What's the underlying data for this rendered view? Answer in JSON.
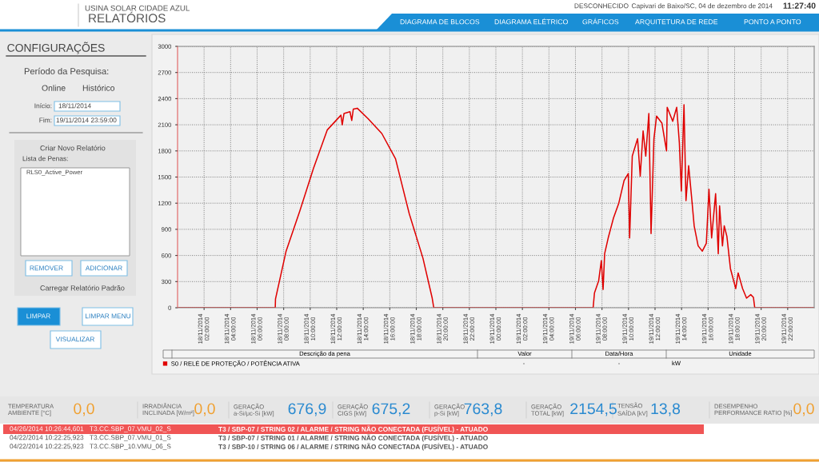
{
  "chart_data": [
    {
      "type": "line",
      "legend": "bottom",
      "grid": true,
      "line_style": "solid",
      "series": [
        {
          "name": "S0 / RELÉ DE PROTEÇÃO / POTÊNCIA ATIVA",
          "color": "#e00000",
          "x": [
            "2014-11-18T00:00",
            "2014-11-18T07:22",
            "2014-11-18T07:23",
            "2014-11-18T08:11",
            "2014-11-18T09:13",
            "2014-11-18T10:15",
            "2014-11-18T11:17",
            "2014-11-18T12:19",
            "2014-11-18T12:25",
            "2014-11-18T12:33",
            "2014-11-18T13:00",
            "2014-11-18T13:08",
            "2014-11-18T13:15",
            "2014-11-18T13:33",
            "2014-11-18T14:22",
            "2014-11-18T15:24",
            "2014-11-18T16:26",
            "2014-11-18T17:28",
            "2014-11-18T18:30",
            "2014-11-18T19:12",
            "2014-11-18T19:19",
            "2014-11-19T00:00",
            "2014-11-19T07:20",
            "2014-11-19T07:26",
            "2014-11-19T07:45",
            "2014-11-19T07:57",
            "2014-11-19T08:05",
            "2014-11-19T08:12",
            "2014-11-19T08:28",
            "2014-11-19T08:52",
            "2014-11-19T09:16",
            "2014-11-19T09:40",
            "2014-11-19T09:59",
            "2014-11-19T10:05",
            "2014-11-19T10:17",
            "2014-11-19T10:41",
            "2014-11-19T10:53",
            "2014-11-19T11:06",
            "2014-11-19T11:18",
            "2014-11-19T11:32",
            "2014-11-19T11:42",
            "2014-11-19T11:55",
            "2014-11-19T12:07",
            "2014-11-19T12:31",
            "2014-11-19T12:52",
            "2014-11-19T12:55",
            "2014-11-19T13:20",
            "2014-11-19T13:38",
            "2014-11-19T13:50",
            "2014-11-19T13:59",
            "2014-11-19T14:11",
            "2014-11-19T14:20",
            "2014-11-19T14:32",
            "2014-11-19T14:45",
            "2014-11-19T14:57",
            "2014-11-19T15:15",
            "2014-11-19T15:34",
            "2014-11-19T15:52",
            "2014-11-19T16:04",
            "2014-11-19T16:16",
            "2014-11-19T16:34",
            "2014-11-19T16:46",
            "2014-11-19T16:52",
            "2014-11-19T17:05",
            "2014-11-19T17:13",
            "2014-11-19T17:25",
            "2014-11-19T17:41",
            "2014-11-19T18:05",
            "2014-11-19T18:16",
            "2014-11-19T18:36",
            "2014-11-19T18:54",
            "2014-11-19T19:13",
            "2014-11-19T19:25",
            "2014-11-19T19:31",
            "2014-11-20T00:00"
          ],
          "values": [
            0,
            0,
            100,
            650,
            1110,
            1600,
            2040,
            2210,
            2100,
            2230,
            2250,
            2150,
            2280,
            2290,
            2170,
            2000,
            1710,
            1080,
            570,
            110,
            0,
            0,
            0,
            170,
            310,
            540,
            210,
            620,
            800,
            1030,
            1200,
            1460,
            1540,
            800,
            1740,
            1940,
            1510,
            2030,
            1740,
            2230,
            850,
            1940,
            2200,
            2120,
            1800,
            2300,
            2140,
            2300,
            1890,
            1340,
            2330,
            1230,
            1630,
            1280,
            940,
            710,
            650,
            740,
            1360,
            800,
            1310,
            620,
            1170,
            710,
            940,
            820,
            450,
            220,
            400,
            220,
            110,
            150,
            120,
            0,
            0
          ]
        }
      ],
      "xlim": [
        "2014-11-18T00:00",
        "2014-11-20T00:00"
      ],
      "xticks": [
        {
          "value": "2014-11-18T02:00",
          "label": "18/11/2014\n02:00:00"
        },
        {
          "value": "2014-11-18T04:00",
          "label": "18/11/2014\n04:00:00"
        },
        {
          "value": "2014-11-18T06:00",
          "label": "18/11/2014\n06:00:00"
        },
        {
          "value": "2014-11-18T08:00",
          "label": "18/11/2014\n08:00:00"
        },
        {
          "value": "2014-11-18T10:00",
          "label": "18/11/2014\n10:00:00"
        },
        {
          "value": "2014-11-18T12:00",
          "label": "18/11/2014\n12:00:00"
        },
        {
          "value": "2014-11-18T14:00",
          "label": "18/11/2014\n14:00:00"
        },
        {
          "value": "2014-11-18T16:00",
          "label": "18/11/2014\n16:00:00"
        },
        {
          "value": "2014-11-18T18:00",
          "label": "18/11/2014\n18:00:00"
        },
        {
          "value": "2014-11-18T20:00",
          "label": "18/11/2014\n20:00:00"
        },
        {
          "value": "2014-11-18T22:00",
          "label": "18/11/2014\n22:00:00"
        },
        {
          "value": "2014-11-19T00:00",
          "label": "19/11/2014\n00:00:00"
        },
        {
          "value": "2014-11-19T02:00",
          "label": "19/11/2014\n02:00:00"
        },
        {
          "value": "2014-11-19T04:00",
          "label": "19/11/2014\n04:00:00"
        },
        {
          "value": "2014-11-19T06:00",
          "label": "19/11/2014\n06:00:00"
        },
        {
          "value": "2014-11-19T08:00",
          "label": "19/11/2014\n08:00:00"
        },
        {
          "value": "2014-11-19T10:00",
          "label": "19/11/2014\n10:00:00"
        },
        {
          "value": "2014-11-19T12:00",
          "label": "19/11/2014\n12:00:00"
        },
        {
          "value": "2014-11-19T14:00",
          "label": "19/11/2014\n14:00:00"
        },
        {
          "value": "2014-11-19T16:00",
          "label": "19/11/2014\n16:00:00"
        },
        {
          "value": "2014-11-19T18:00",
          "label": "19/11/2014\n18:00:00"
        },
        {
          "value": "2014-11-19T20:00",
          "label": "19/11/2014\n20:00:00"
        },
        {
          "value": "2014-11-19T22:00",
          "label": "19/11/2014\n22:00:00"
        }
      ],
      "ylim": [
        0,
        3000
      ],
      "yticks": [
        0,
        300,
        600,
        900,
        1200,
        1500,
        1800,
        2100,
        2400,
        2700,
        3000
      ],
      "annotations": [
        "Descrição da pena",
        "Valor",
        "Data/Hora",
        "Unidade",
        "-",
        "-",
        "kW"
      ]
    },
    {
      "type": "other",
      "title": "RELATÓRIOS",
      "subtitle": "USINA SOLAR CIDADE AZUL",
      "annotations": [
        "DESCONHECIDO",
        "Capivari de Baixo/SC, 04 de dezembro de 2014",
        "11:27:40",
        "DIAGRAMA DE BLOCOS",
        "DIAGRAMA ELÉTRICO",
        "GRÁFICOS",
        "ARQUITETURA DE REDE",
        "PONTO A PONTO"
      ]
    },
    {
      "type": "other",
      "title": "CONFIGURAÇÕES",
      "annotations": [
        "Período da Pesquisa:",
        "Online",
        "Histórico",
        "Início:",
        "18/11/2014",
        "Fim:",
        "19/11/2014 23:59:00",
        "Criar Novo Relatório",
        "Lista de Penas:",
        "RLS0_Active_Power",
        "REMOVER",
        "ADICIONAR",
        "Carregar Relatório Padrão",
        "LIMPAR",
        "LIMPAR MENU",
        "VISUALIZAR"
      ]
    },
    {
      "type": "other",
      "annotations": [
        "TEMPERATURA\nAMBIENTE [°C]",
        "0,0",
        "IRRADIÂNCIA\nINCLINADA [W/m²]",
        "0,0",
        "GERAÇÃO\na-Si/μc-Si [kW]",
        "676,9",
        "GERAÇÃO\nCIGS [kW]",
        "675,2",
        "GERAÇÃO\np-Si [kW]",
        "763,8",
        "GERAÇÃO\nTOTAL [kW]",
        "2154,5",
        "TENSÃO\nSAÍDA [kV]",
        "13,8",
        "DESEMPENHO\nPERFORMANCE RATIO [%]",
        "0,0"
      ]
    },
    {
      "type": "other",
      "annotations": [
        "04/26/2014 10:26:44,601",
        "T3.CC.SBP_07.VMU_02_S",
        "T3 / SBP-07 / STRING 02 / ALARME / STRING NÃO CONECTADA (FUSÍVEL) - ATUADO",
        "04/22/2014 10:22:25,923",
        "T3.CC.SBP_07.VMU_01_S",
        "T3 / SBP-07 / STRING 01 / ALARME / STRING NÃO CONECTADA (FUSÍVEL) - ATUADO",
        "04/22/2014 10:22:25,923",
        "T3.CC.SBP_10.VMU_06_S",
        "T3 / SBP-10 / STRING 06 / ALARME / STRING NÃO CONECTADA (FUSÍVEL) - ATUADO"
      ]
    }
  ]
}
